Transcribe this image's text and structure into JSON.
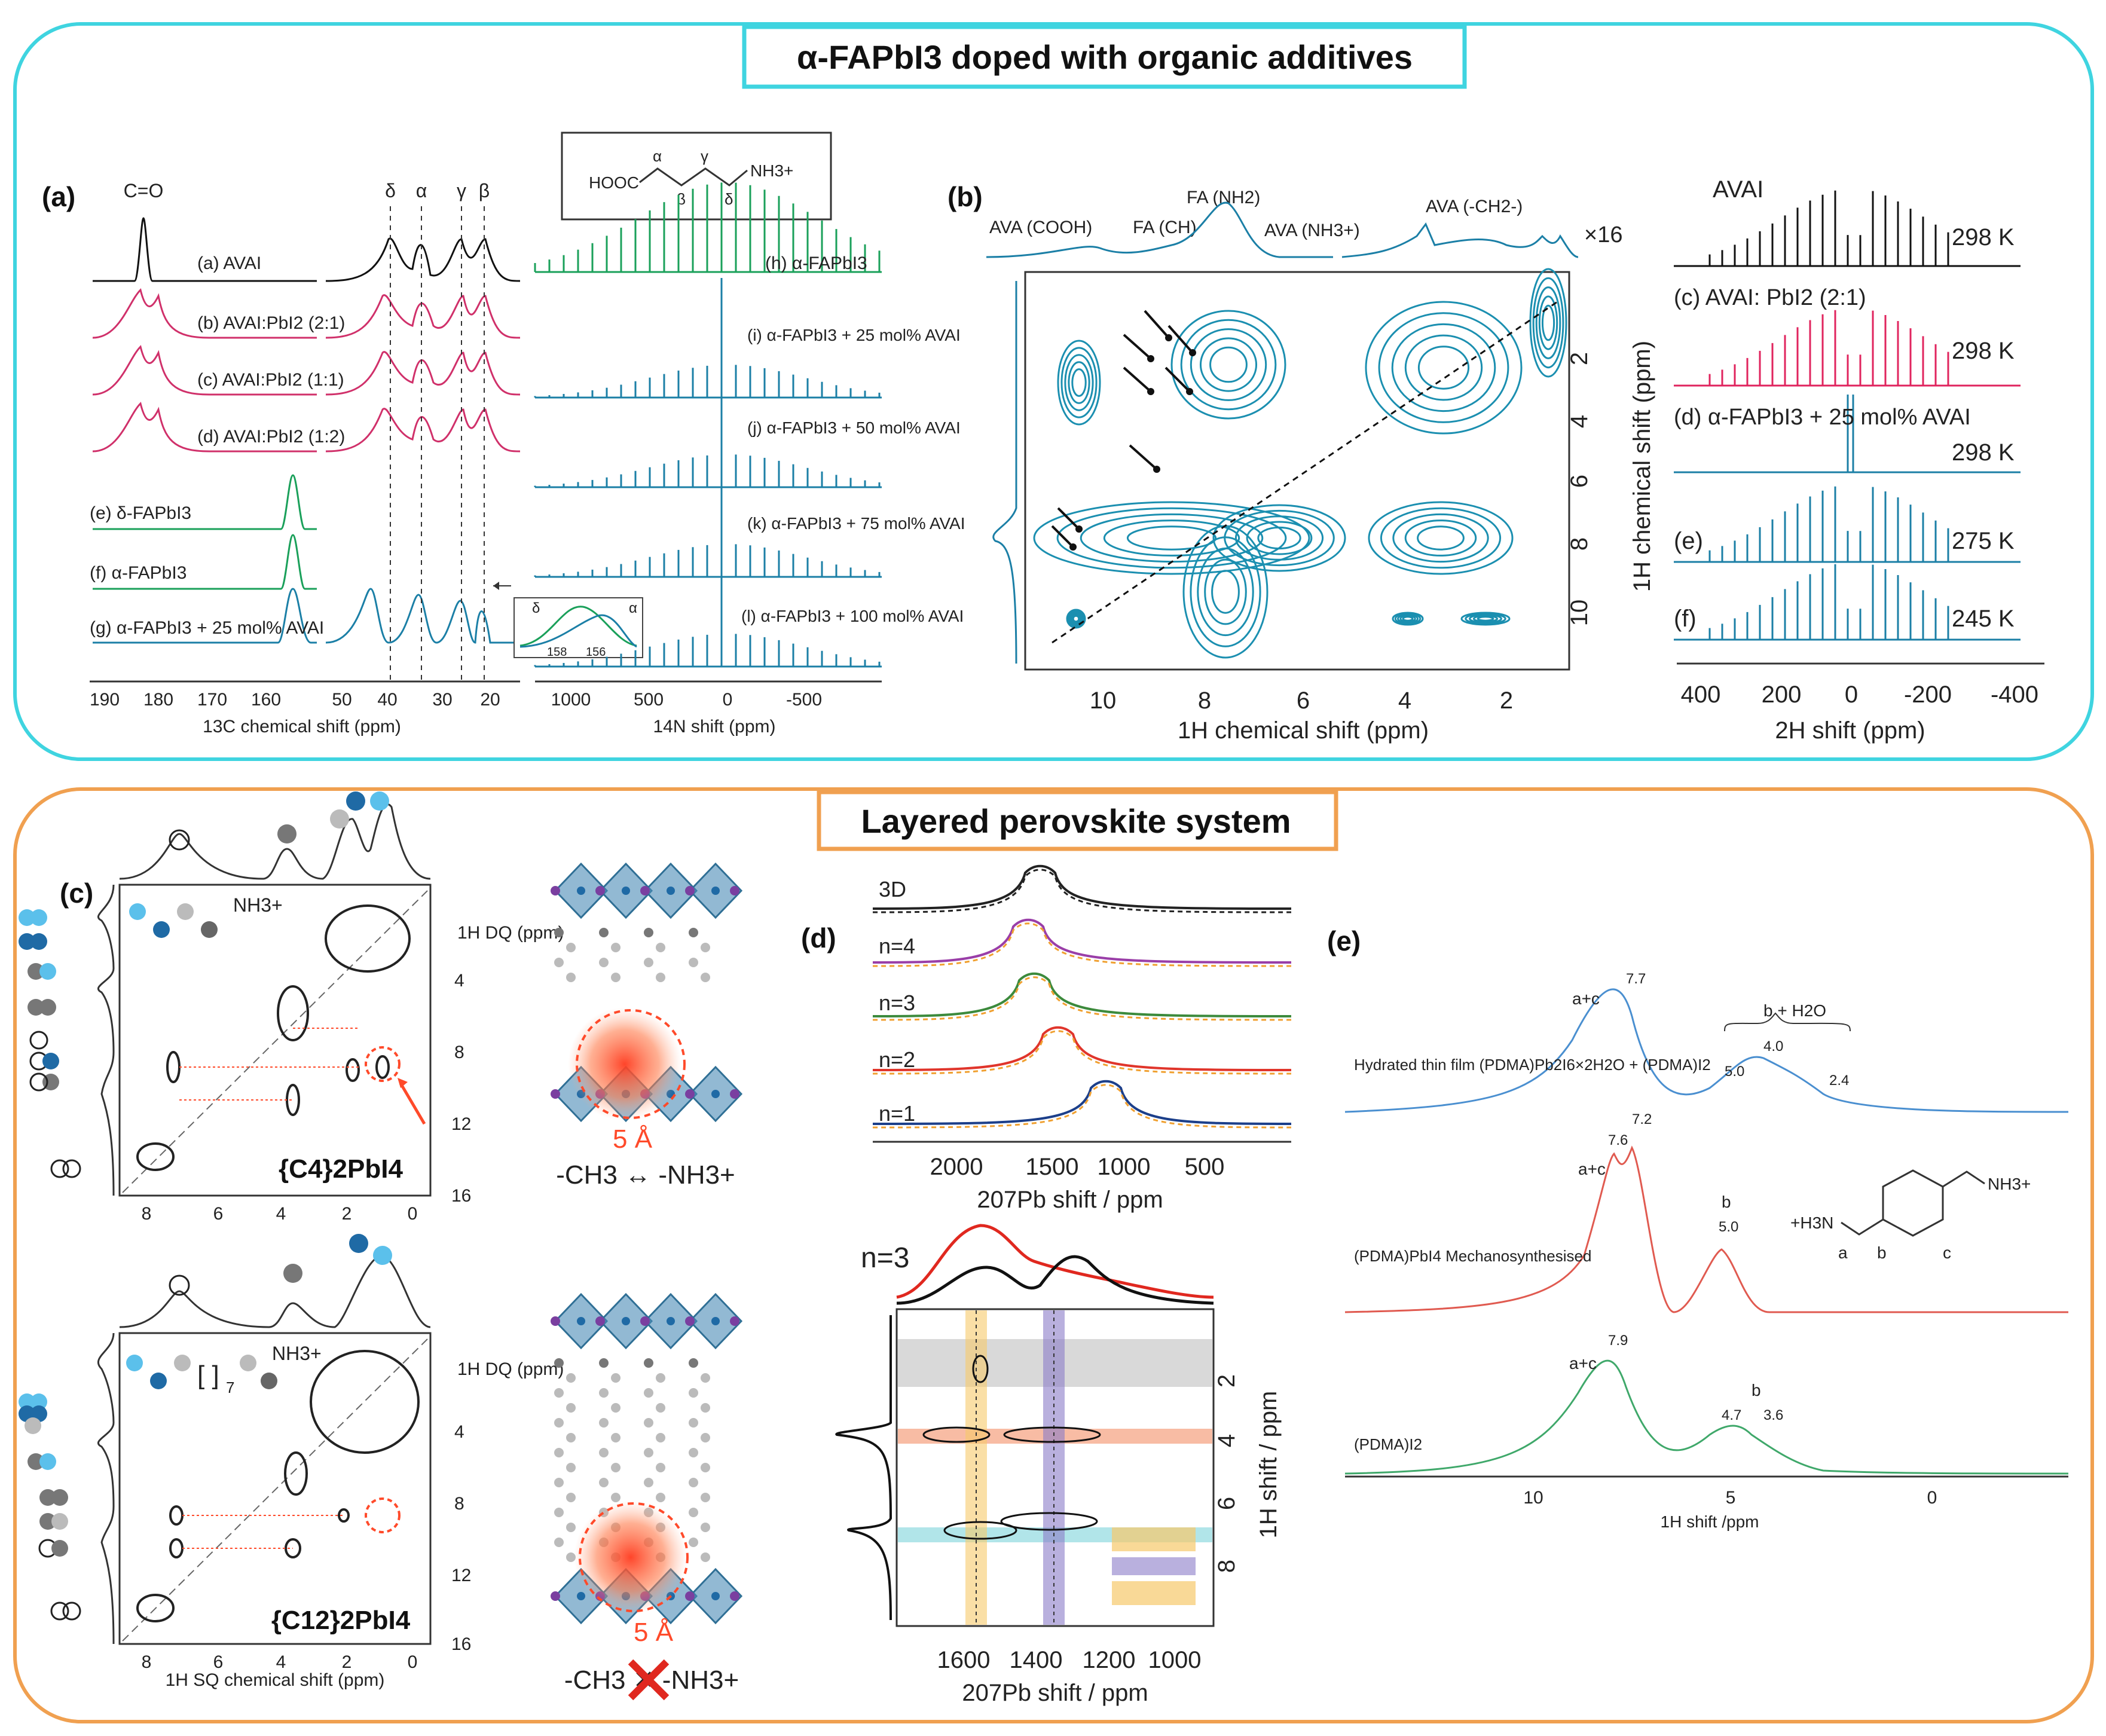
{
  "top_section": {
    "title": "α-FAPbI3 doped with organic additives",
    "border_color": "#3fd4e0",
    "panel_a": {
      "label": "(a)",
      "c13": {
        "co_label": "C=O",
        "greek_labels": [
          "δ",
          "α",
          "γ",
          "β"
        ],
        "spectra": [
          {
            "label": "(a) AVAI",
            "color": "#111111"
          },
          {
            "label": "(b) AVAI:PbI2 (2:1)",
            "color": "#d0306a"
          },
          {
            "label": "(c) AVAI:PbI2 (1:1)",
            "color": "#d0306a"
          },
          {
            "label": "(d) AVAI:PbI2 (1:2)",
            "color": "#d0306a"
          },
          {
            "label": "(e) δ-FAPbI3",
            "color": "#1aa05a"
          },
          {
            "label": "(f) α-FAPbI3",
            "color": "#1aa05a"
          },
          {
            "label": "(g) α-FAPbI3 + 25 mol% AVAI",
            "color": "#1b7fa6"
          }
        ],
        "axis_ticks_left": [
          "190",
          "180",
          "170",
          "160"
        ],
        "axis_ticks_right": [
          "50",
          "40",
          "30",
          "20"
        ],
        "xlabel": "13C chemical shift (ppm)",
        "inset_ticks": [
          "158",
          "156"
        ],
        "inset_labels": [
          "δ",
          "α"
        ]
      },
      "structure": {
        "formula": "HOOC",
        "amine": "NH3+",
        "greek_top": [
          "α",
          "γ"
        ],
        "greek_bottom": [
          "β",
          "δ"
        ]
      },
      "n14": {
        "spectra": [
          {
            "label": "(h) α-FAPbI3",
            "color": "#1aa05a"
          },
          {
            "label": "(i) α-FAPbI3 + 25 mol% AVAI",
            "color": "#1b7fa6"
          },
          {
            "label": "(j) α-FAPbI3 + 50 mol% AVAI",
            "color": "#1b7fa6"
          },
          {
            "label": "(k) α-FAPbI3 + 75 mol% AVAI",
            "color": "#1b7fa6"
          },
          {
            "label": "(l) α-FAPbI3 + 100 mol% AVAI",
            "color": "#1b7fa6"
          }
        ],
        "axis_ticks": [
          "1000",
          "500",
          "0",
          "-500"
        ],
        "xlabel": "14N shift (ppm)"
      }
    },
    "panel_b": {
      "label": "(b)",
      "peak_labels": [
        "AVA (COOH)",
        "FA (CH)",
        "FA (NH2)",
        "AVA (NH3+)",
        "AVA (-CH2-)"
      ],
      "scale": "×16",
      "x_ticks": [
        "10",
        "8",
        "6",
        "4",
        "2"
      ],
      "y_ticks": [
        "2",
        "4",
        "6",
        "8",
        "10"
      ],
      "xlabel": "1H chemical shift (ppm)",
      "ylabel": "1H chemical shift (ppm)"
    },
    "panel_h2": {
      "spectra": [
        {
          "label": "AVAI",
          "temp": "298 K",
          "color": "#111111"
        },
        {
          "label": "(c) AVAI: PbI2 (2:1)",
          "temp": "298 K",
          "color": "#e0245e"
        },
        {
          "label": "(d) α-FAPbI3 + 25 mol% AVAI",
          "temp": "298 K",
          "color": "#1b7fa6"
        },
        {
          "label": "(e)",
          "temp": "275 K",
          "color": "#1b7fa6"
        },
        {
          "label": "(f)",
          "temp": "245 K",
          "color": "#1b7fa6"
        }
      ],
      "axis_ticks": [
        "400",
        "200",
        "0",
        "-200",
        "-400"
      ],
      "xlabel": "2H shift (ppm)"
    }
  },
  "bottom_section": {
    "title": "Layered perovskite system",
    "border_color": "#f0a050",
    "panel_c": {
      "label": "(c)",
      "top": {
        "compound": "{C4}2PbI4",
        "ylabel": "1H DQ (ppm)",
        "amine": "NH3+",
        "y_ticks": [
          "4",
          "8",
          "12",
          "16"
        ],
        "x_ticks": [
          "8",
          "6",
          "4",
          "2",
          "0"
        ]
      },
      "bottom": {
        "compound": "{C12}2PbI4",
        "ylabel": "1H DQ (ppm)",
        "amine": "NH3+",
        "repeat": "7",
        "y_ticks": [
          "4",
          "8",
          "12",
          "16"
        ],
        "x_ticks": [
          "8",
          "6",
          "4",
          "2",
          "0"
        ],
        "xlabel": "1H SQ chemical shift (ppm)"
      }
    },
    "structures": {
      "distance_top": "5 Å",
      "distance_bottom": "5 Å",
      "caption_top": "-CH3 ↔ -NH3+",
      "caption_bottom": "-CH3 ✕ -NH3+"
    },
    "panel_d": {
      "label": "(d)",
      "traces": [
        {
          "label": "3D",
          "color": "#222222"
        },
        {
          "label": "n=4",
          "color": "#9a3ea8"
        },
        {
          "label": "n=3",
          "color": "#3c8a3c"
        },
        {
          "label": "n=2",
          "color": "#e0352b"
        },
        {
          "label": "n=1",
          "color": "#1c3f8a"
        }
      ],
      "x_ticks": [
        "2000",
        "1500",
        "1000",
        "500"
      ],
      "xlabel": "207Pb shift / ppm",
      "hetcor": {
        "title": "n=3",
        "x_ticks": [
          "1600",
          "1400",
          "1200",
          "1000"
        ],
        "y_ticks": [
          "2",
          "4",
          "6",
          "8"
        ],
        "xlabel": "207Pb shift / ppm",
        "ylabel": "1H shift / ppm"
      }
    },
    "panel_e": {
      "label": "(e)",
      "spectra": [
        {
          "name": "Hydrated thin film (PDMA)Pb2I6×2H2O + (PDMA)I2",
          "color": "#4a8fd0",
          "peaks": [
            "7.7",
            "5.0",
            "4.0",
            "2.4"
          ],
          "assign": [
            "a+c",
            "b + H2O"
          ]
        },
        {
          "name": "(PDMA)PbI4 Mechanosynthesised",
          "color": "#e05a50",
          "peaks": [
            "7.6",
            "7.2",
            "5.0"
          ],
          "assign": [
            "a+c",
            "b"
          ]
        },
        {
          "name": "(PDMA)I2",
          "color": "#3fa86a",
          "peaks": [
            "7.9",
            "4.7",
            "3.6"
          ],
          "assign": [
            "a+c",
            "b"
          ]
        }
      ],
      "molecule": {
        "left": "+H3N",
        "right": "NH3+",
        "sites": [
          "a",
          "b",
          "c"
        ]
      },
      "x_ticks": [
        "10",
        "5",
        "0"
      ],
      "xlabel": "1H shift /ppm"
    }
  }
}
